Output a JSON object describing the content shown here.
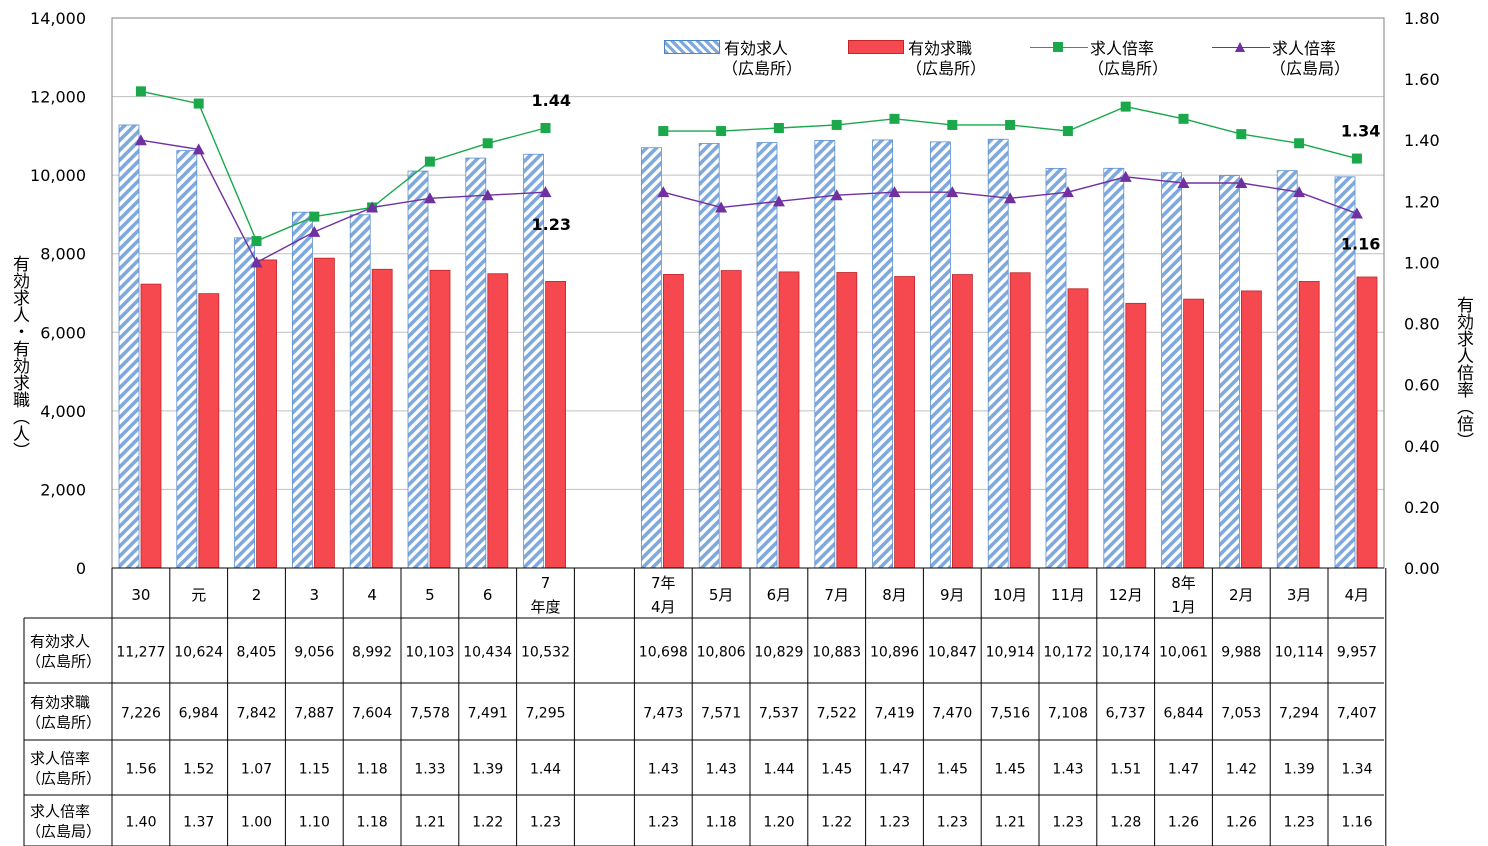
{
  "chart_data": {
    "type": "bar",
    "categories": [
      "30",
      "元",
      "2",
      "3",
      "4",
      "5",
      "6",
      "7\n年度",
      "7年\n4月",
      "5月",
      "6月",
      "7月",
      "8月",
      "9月",
      "10月",
      "11月",
      "12月",
      "8年\n1月",
      "2月",
      "3月",
      "4月"
    ],
    "series": [
      {
        "name": "有効求人\n（広島所）",
        "kind": "bar",
        "axis": "left",
        "color": "#7fa8dd",
        "values": [
          11277,
          10624,
          8405,
          9056,
          8992,
          10103,
          10434,
          10532,
          10698,
          10806,
          10829,
          10883,
          10896,
          10847,
          10914,
          10172,
          10174,
          10061,
          9988,
          10114,
          9957
        ]
      },
      {
        "name": "有効求職\n（広島所）",
        "kind": "bar",
        "axis": "left",
        "color": "#f5484f",
        "values": [
          7226,
          6984,
          7842,
          7887,
          7604,
          7578,
          7491,
          7295,
          7473,
          7571,
          7537,
          7522,
          7419,
          7470,
          7516,
          7108,
          6737,
          6844,
          7053,
          7294,
          7407
        ]
      },
      {
        "name": "求人倍率\n（広島所）",
        "kind": "line",
        "axis": "right",
        "color": "#1aa84b",
        "marker": "square",
        "values": [
          1.56,
          1.52,
          1.07,
          1.15,
          1.18,
          1.33,
          1.39,
          1.44,
          1.43,
          1.43,
          1.44,
          1.45,
          1.47,
          1.45,
          1.45,
          1.43,
          1.51,
          1.47,
          1.42,
          1.39,
          1.34
        ]
      },
      {
        "name": "求人倍率\n（広島局）",
        "kind": "line",
        "axis": "right",
        "color": "#7030a0",
        "marker": "triangle",
        "values": [
          1.4,
          1.37,
          1.0,
          1.1,
          1.18,
          1.21,
          1.22,
          1.23,
          1.23,
          1.18,
          1.2,
          1.22,
          1.23,
          1.23,
          1.21,
          1.23,
          1.28,
          1.26,
          1.26,
          1.23,
          1.16
        ]
      }
    ],
    "y_left": {
      "label": "有効求人・有効求職（人）",
      "ylim": [
        0,
        14000
      ],
      "ticks": [
        "0",
        "2,000",
        "4,000",
        "6,000",
        "8,000",
        "10,000",
        "12,000",
        "14,000"
      ]
    },
    "y_right": {
      "label": "有効求人倍率（倍）",
      "ylim": [
        0,
        1.8
      ],
      "ticks": [
        "0.00",
        "0.20",
        "0.40",
        "0.60",
        "0.80",
        "1.00",
        "1.20",
        "1.40",
        "1.60",
        "1.80"
      ]
    },
    "annotations": [
      "1.44",
      "1.23",
      "1.34",
      "1.16"
    ],
    "legend_position": "top-right",
    "grid": true,
    "data_table": {
      "row_labels": [
        "有効求人\n（広島所）",
        "有効求職\n（広島所）",
        "求人倍率\n（広島所）",
        "求人倍率\n（広島局）"
      ],
      "rows": [
        [
          "11,277",
          "10,624",
          "8,405",
          "9,056",
          "8,992",
          "10,103",
          "10,434",
          "10,532",
          "10,698",
          "10,806",
          "10,829",
          "10,883",
          "10,896",
          "10,847",
          "10,914",
          "10,172",
          "10,174",
          "10,061",
          "9,988",
          "10,114",
          "9,957"
        ],
        [
          "7,226",
          "6,984",
          "7,842",
          "7,887",
          "7,604",
          "7,578",
          "7,491",
          "7,295",
          "7,473",
          "7,571",
          "7,537",
          "7,522",
          "7,419",
          "7,470",
          "7,516",
          "7,108",
          "6,737",
          "6,844",
          "7,053",
          "7,294",
          "7,407"
        ],
        [
          "1.56",
          "1.52",
          "1.07",
          "1.15",
          "1.18",
          "1.33",
          "1.39",
          "1.44",
          "1.43",
          "1.43",
          "1.44",
          "1.45",
          "1.47",
          "1.45",
          "1.45",
          "1.43",
          "1.51",
          "1.47",
          "1.42",
          "1.39",
          "1.34"
        ],
        [
          "1.40",
          "1.37",
          "1.00",
          "1.10",
          "1.18",
          "1.21",
          "1.22",
          "1.23",
          "1.23",
          "1.18",
          "1.20",
          "1.22",
          "1.23",
          "1.23",
          "1.21",
          "1.23",
          "1.28",
          "1.26",
          "1.26",
          "1.23",
          "1.16"
        ]
      ]
    }
  }
}
